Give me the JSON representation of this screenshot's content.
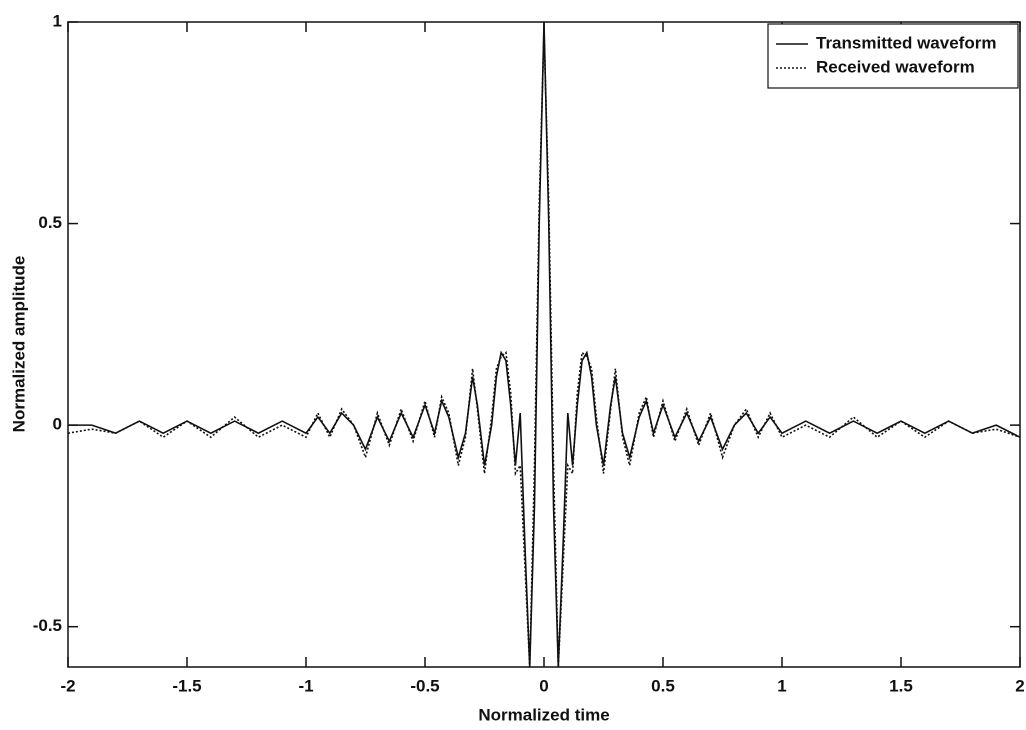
{
  "chart_data": {
    "type": "line",
    "xlabel": "Normalized time",
    "ylabel": "Normalized amplitude",
    "x": [
      -2.0,
      -1.9,
      -1.8,
      -1.7,
      -1.6,
      -1.5,
      -1.4,
      -1.3,
      -1.2,
      -1.1,
      -1.0,
      -0.95,
      -0.9,
      -0.85,
      -0.8,
      -0.75,
      -0.7,
      -0.65,
      -0.6,
      -0.55,
      -0.5,
      -0.46,
      -0.43,
      -0.4,
      -0.36,
      -0.33,
      -0.3,
      -0.28,
      -0.25,
      -0.22,
      -0.2,
      -0.18,
      -0.16,
      -0.14,
      -0.12,
      -0.1,
      -0.08,
      -0.06,
      -0.04,
      -0.02,
      0,
      0.02,
      0.04,
      0.06,
      0.08,
      0.1,
      0.12,
      0.14,
      0.16,
      0.18,
      0.2,
      0.22,
      0.25,
      0.28,
      0.3,
      0.33,
      0.36,
      0.4,
      0.43,
      0.46,
      0.5,
      0.55,
      0.6,
      0.65,
      0.7,
      0.75,
      0.8,
      0.85,
      0.9,
      0.95,
      1.0,
      1.1,
      1.2,
      1.3,
      1.4,
      1.5,
      1.6,
      1.7,
      1.8,
      1.9,
      2.0
    ],
    "series": [
      {
        "name": "Transmitted waveform",
        "color": "#111111",
        "style": "solid",
        "values": [
          0.0,
          0.0,
          -0.02,
          0.01,
          -0.02,
          0.01,
          -0.02,
          0.01,
          -0.02,
          0.01,
          -0.02,
          0.02,
          -0.02,
          0.03,
          0.0,
          -0.06,
          0.02,
          -0.04,
          0.03,
          -0.03,
          0.05,
          -0.02,
          0.06,
          0.02,
          -0.08,
          -0.02,
          0.12,
          0.05,
          -0.1,
          0.0,
          0.12,
          0.18,
          0.16,
          0.05,
          -0.1,
          0.03,
          -0.3,
          -0.6,
          -0.2,
          0.5,
          1.0,
          0.5,
          -0.2,
          -0.6,
          -0.3,
          0.03,
          -0.1,
          0.05,
          0.16,
          0.18,
          0.12,
          0.0,
          -0.1,
          0.05,
          0.12,
          -0.02,
          -0.08,
          0.02,
          0.06,
          -0.02,
          0.05,
          -0.03,
          0.03,
          -0.04,
          0.02,
          -0.06,
          0.0,
          0.03,
          -0.02,
          0.02,
          -0.02,
          0.01,
          -0.02,
          0.01,
          -0.02,
          0.01,
          -0.02,
          0.01,
          -0.02,
          0.0,
          -0.03
        ]
      },
      {
        "name": "Received waveform",
        "color": "#111111",
        "style": "dotted",
        "values": [
          -0.02,
          -0.01,
          -0.02,
          0.01,
          -0.03,
          0.01,
          -0.03,
          0.02,
          -0.03,
          0.0,
          -0.03,
          0.03,
          -0.03,
          0.04,
          0.0,
          -0.08,
          0.03,
          -0.05,
          0.04,
          -0.04,
          0.06,
          -0.03,
          0.07,
          0.03,
          -0.1,
          -0.03,
          0.14,
          0.04,
          -0.12,
          0.02,
          0.14,
          0.17,
          0.18,
          0.08,
          -0.12,
          -0.1,
          -0.35,
          -0.6,
          -0.1,
          0.55,
          0.98,
          0.55,
          -0.1,
          -0.6,
          -0.35,
          -0.1,
          -0.12,
          0.08,
          0.18,
          0.17,
          0.14,
          0.02,
          -0.12,
          0.04,
          0.14,
          -0.03,
          -0.1,
          0.03,
          0.07,
          -0.03,
          0.06,
          -0.04,
          0.04,
          -0.05,
          0.03,
          -0.08,
          0.0,
          0.04,
          -0.03,
          0.03,
          -0.03,
          0.0,
          -0.03,
          0.02,
          -0.03,
          0.01,
          -0.03,
          0.01,
          -0.02,
          -0.01,
          -0.03
        ]
      }
    ],
    "xlim": [
      -2,
      2
    ],
    "xticks": [
      -2,
      -1.5,
      -1,
      -0.5,
      0,
      0.5,
      1,
      1.5,
      2
    ],
    "ylim": [
      -0.6,
      1
    ],
    "yticks": [
      -0.5,
      0,
      0.5,
      1
    ],
    "grid": false,
    "legend": "upper right"
  }
}
